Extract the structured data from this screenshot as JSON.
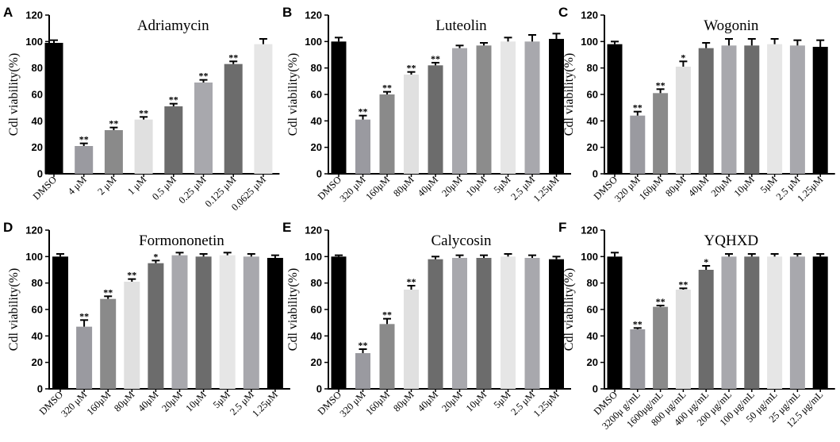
{
  "chart_data": [
    {
      "panel": "A",
      "type": "bar",
      "title": "Adriamycin",
      "ylabel": "Cdl viability(%)",
      "ylim": [
        0,
        120
      ],
      "yticks": [
        0,
        20,
        40,
        60,
        80,
        100,
        120
      ],
      "categories": [
        "DMSO",
        "4 μM",
        "2 μM",
        "1 μM",
        "0.5 μM",
        "0.25 μM",
        "0.125 μM",
        "0.0625 μM"
      ],
      "values": [
        99,
        21,
        33,
        41,
        51,
        69,
        83,
        98
      ],
      "errors": [
        2,
        2,
        2,
        2,
        2,
        2,
        2,
        4
      ],
      "significance": [
        "",
        "**",
        "**",
        "**",
        "**",
        "**",
        "**",
        ""
      ],
      "colors": [
        "#000000",
        "#9a9aa0",
        "#8a8a8a",
        "#e0e0e0",
        "#6c6c6c",
        "#a8a8ad",
        "#6c6c6c",
        "#e6e6e6"
      ]
    },
    {
      "panel": "B",
      "type": "bar",
      "title": "Luteolin",
      "ylabel": "Cdl viability(%)",
      "ylim": [
        0,
        120
      ],
      "yticks": [
        0,
        20,
        40,
        60,
        80,
        100,
        120
      ],
      "categories": [
        "DMSO",
        "320 μM",
        "160μM",
        "80μM",
        "40μM",
        "20μM",
        "10μM",
        "5μM",
        "2.5 μM",
        "1.25μM"
      ],
      "values": [
        100,
        41,
        60,
        75,
        82,
        95,
        97,
        100,
        100,
        102
      ],
      "errors": [
        3,
        3,
        2,
        2,
        2,
        2,
        2,
        3,
        5,
        4
      ],
      "significance": [
        "",
        "**",
        "**",
        "**",
        "**",
        "",
        "",
        "",
        "",
        ""
      ],
      "colors": [
        "#000000",
        "#9a9aa0",
        "#8a8a8a",
        "#e0e0e0",
        "#6c6c6c",
        "#a8a8ad",
        "#8c8c8c",
        "#e6e6e6",
        "#a8a8ad",
        "#000000"
      ]
    },
    {
      "panel": "C",
      "type": "bar",
      "title": "Wogonin",
      "ylabel": "Cdl viability(%)",
      "ylim": [
        0,
        120
      ],
      "yticks": [
        0,
        20,
        40,
        60,
        80,
        100,
        120
      ],
      "categories": [
        "DMSO",
        "320 μM",
        "160μM",
        "80μM",
        "40μM",
        "20μM",
        "10μM",
        "5μM",
        "2.5 μM",
        "1.25μM"
      ],
      "values": [
        98,
        44,
        61,
        81,
        95,
        97,
        97,
        98,
        97,
        96
      ],
      "errors": [
        2,
        3,
        3,
        4,
        4,
        5,
        5,
        4,
        4,
        5
      ],
      "significance": [
        "",
        "**",
        "**",
        "*",
        "",
        "",
        "",
        "",
        "",
        ""
      ],
      "colors": [
        "#000000",
        "#9a9aa0",
        "#8a8a8a",
        "#e0e0e0",
        "#6c6c6c",
        "#a8a8ad",
        "#6c6c6c",
        "#e6e6e6",
        "#a8a8ad",
        "#000000"
      ]
    },
    {
      "panel": "D",
      "type": "bar",
      "title": "Formononetin",
      "ylabel": "Cdl viability(%)",
      "ylim": [
        0,
        120
      ],
      "yticks": [
        0,
        20,
        40,
        60,
        80,
        100,
        120
      ],
      "categories": [
        "DMSO",
        "320 μM",
        "160μM",
        "80μM",
        "40μM",
        "20μM",
        "10μM",
        "5μM",
        "2.5 μM",
        "1.25μM"
      ],
      "values": [
        100,
        47,
        68,
        81,
        95,
        101,
        100,
        101,
        100,
        99
      ],
      "errors": [
        2,
        5,
        2,
        2,
        2,
        2,
        2,
        2,
        2,
        2
      ],
      "significance": [
        "",
        "**",
        "**",
        "**",
        "*",
        "",
        "",
        "",
        "",
        ""
      ],
      "colors": [
        "#000000",
        "#9a9aa0",
        "#8a8a8a",
        "#e0e0e0",
        "#6c6c6c",
        "#a8a8ad",
        "#6c6c6c",
        "#e6e6e6",
        "#a8a8ad",
        "#000000"
      ]
    },
    {
      "panel": "E",
      "type": "bar",
      "title": "Calycosin",
      "ylabel": "Cdl viability(%)",
      "ylim": [
        0,
        120
      ],
      "yticks": [
        0,
        20,
        40,
        60,
        80,
        100,
        120
      ],
      "categories": [
        "DMSO",
        "320 μM",
        "160μM",
        "80μM",
        "40μM",
        "20μM",
        "10μM",
        "5μM",
        "2.5 μM",
        "1.25μM"
      ],
      "values": [
        100,
        27,
        49,
        75,
        98,
        99,
        99,
        100,
        99,
        98
      ],
      "errors": [
        1,
        3,
        4,
        3,
        2,
        2,
        2,
        2,
        2,
        2
      ],
      "significance": [
        "",
        "**",
        "**",
        "**",
        "",
        "",
        "",
        "",
        "",
        ""
      ],
      "colors": [
        "#000000",
        "#9a9aa0",
        "#8a8a8a",
        "#e0e0e0",
        "#6c6c6c",
        "#a8a8ad",
        "#6c6c6c",
        "#e6e6e6",
        "#a8a8ad",
        "#000000"
      ]
    },
    {
      "panel": "F",
      "type": "bar",
      "title": "YQHXD",
      "ylabel": "Cdl viability(%)",
      "ylim": [
        0,
        120
      ],
      "yticks": [
        0,
        20,
        40,
        60,
        80,
        100,
        120
      ],
      "categories": [
        "DMSO",
        "3200μ g/mL",
        "1600μg/mL",
        "800 μg/mL",
        "400 μg/mL",
        "200 μg/mL",
        "100 μg/mL",
        "50 μg/mL",
        "25 μg/mL",
        "12.5 μg/mL"
      ],
      "values": [
        100,
        45,
        62,
        75,
        90,
        100,
        100,
        100,
        100,
        100
      ],
      "errors": [
        3,
        1,
        1,
        1,
        3,
        2,
        2,
        2,
        2,
        2
      ],
      "significance": [
        "",
        "**",
        "**",
        "**",
        "*",
        "",
        "",
        "",
        "",
        ""
      ],
      "colors": [
        "#000000",
        "#9a9aa0",
        "#8a8a8a",
        "#e0e0e0",
        "#6c6c6c",
        "#a8a8ad",
        "#6c6c6c",
        "#e6e6e6",
        "#a8a8ad",
        "#000000"
      ]
    }
  ]
}
